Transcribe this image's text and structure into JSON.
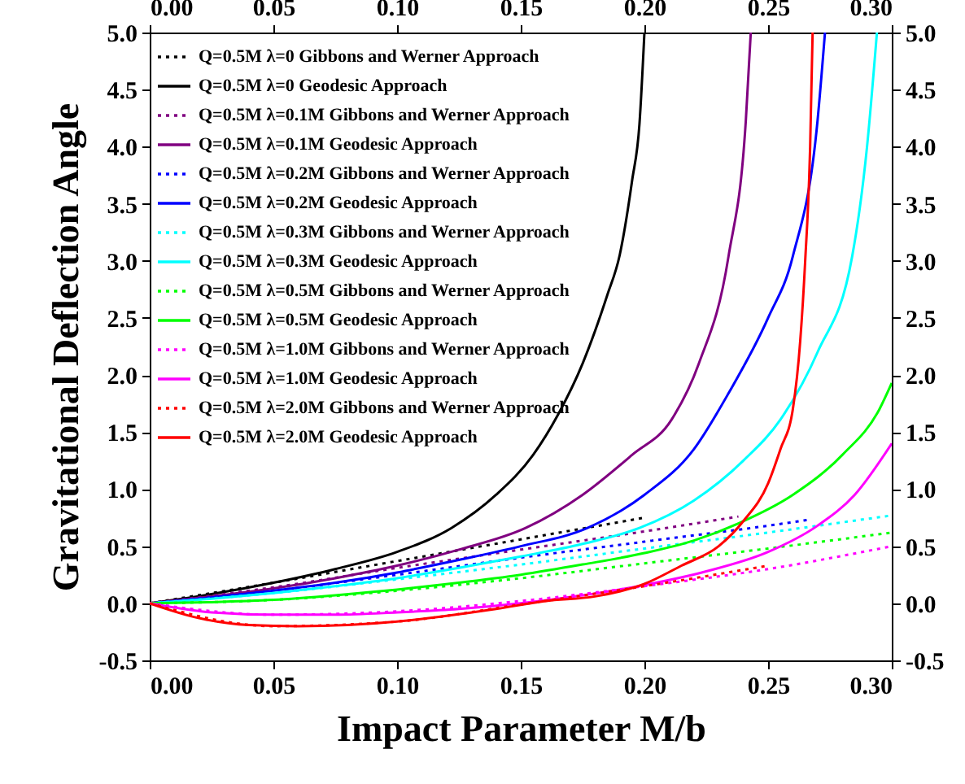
{
  "chart_data": {
    "type": "line",
    "xlabel": "Impact Parameter M/b",
    "ylabel": "Gravitational Deflection Angle",
    "xlim": [
      0,
      0.3
    ],
    "xticks": [
      {
        "value": 0,
        "label": "0.00"
      },
      {
        "value": 0.05,
        "label": "0.05"
      },
      {
        "value": 0.1,
        "label": "0.10"
      },
      {
        "value": 0.15,
        "label": "0.15"
      },
      {
        "value": 0.2,
        "label": "0.20"
      },
      {
        "value": 0.25,
        "label": "0.25"
      },
      {
        "value": 0.3,
        "label": "0.30"
      }
    ],
    "x2lim": [
      0,
      0.3
    ],
    "x2ticks": [
      {
        "value": 0,
        "label": "0.00"
      },
      {
        "value": 0.05,
        "label": "0.05"
      },
      {
        "value": 0.1,
        "label": "0.10"
      },
      {
        "value": 0.15,
        "label": "0.15"
      },
      {
        "value": 0.2,
        "label": "0.20"
      },
      {
        "value": 0.25,
        "label": "0.25"
      },
      {
        "value": 0.3,
        "label": "0.30"
      }
    ],
    "ylim": [
      -0.5,
      5
    ],
    "yticks": [
      -0.5,
      {
        "value": 0,
        "label": "0.0"
      },
      0.5,
      {
        "value": 1,
        "label": "1.0"
      },
      1.5,
      {
        "value": 2,
        "label": "2.0"
      },
      2.5,
      {
        "value": 3,
        "label": "3.0"
      },
      3.5,
      {
        "value": 4,
        "label": "4.0"
      },
      4.5,
      {
        "value": 5,
        "label": "5.0"
      }
    ],
    "y2lim": [
      -0.5,
      5
    ],
    "y2ticks": [
      -0.5,
      {
        "value": 0,
        "label": "0.0"
      },
      0.5,
      {
        "value": 1,
        "label": "1.0"
      },
      1.5,
      {
        "value": 2,
        "label": "2.0"
      },
      2.5,
      {
        "value": 3,
        "label": "3.0"
      },
      3.5,
      {
        "value": 4,
        "label": "4.0"
      },
      4.5,
      {
        "value": 5,
        "label": "5.0"
      }
    ],
    "legend": "top left",
    "grid": false,
    "marker": "none",
    "series": [
      {
        "name": "Q=0.5M λ=0 Gibbons and Werner Approach",
        "color": "#000000",
        "line_style": "dotted",
        "x": [
          0,
          0.05,
          0.1,
          0.15,
          0.2
        ],
        "values": [
          0,
          0.18,
          0.37,
          0.56,
          0.75
        ]
      },
      {
        "name": "Q=0.5M λ=0 Geodesic Approach",
        "color": "#000000",
        "line_style": "solid",
        "x": [
          0,
          0.025,
          0.05,
          0.075,
          0.1,
          0.122,
          0.14,
          0.155,
          0.165,
          0.175,
          0.185,
          0.19,
          0.195,
          0.198,
          0.2
        ],
        "values": [
          0,
          0.08,
          0.18,
          0.3,
          0.45,
          0.66,
          0.95,
          1.3,
          1.65,
          2.1,
          2.7,
          3.05,
          3.7,
          4.2,
          5.0
        ]
      },
      {
        "name": "Q=0.5M λ=0.1M Gibbons and Werner Approach",
        "color": "#800080",
        "line_style": "dotted",
        "x": [
          0,
          0.05,
          0.1,
          0.15,
          0.2,
          0.238
        ],
        "values": [
          0,
          0.14,
          0.31,
          0.47,
          0.63,
          0.76
        ]
      },
      {
        "name": "Q=0.5M λ=0.1M Geodesic Approach",
        "color": "#800080",
        "line_style": "solid",
        "x": [
          0,
          0.025,
          0.05,
          0.075,
          0.1,
          0.125,
          0.152,
          0.175,
          0.195,
          0.211,
          0.222,
          0.234,
          0.241,
          0.243
        ],
        "values": [
          0,
          0.06,
          0.13,
          0.22,
          0.33,
          0.47,
          0.66,
          0.95,
          1.3,
          1.61,
          2.1,
          3.04,
          4.23,
          5.0
        ]
      },
      {
        "name": "Q=0.5M λ=0.2M Gibbons and Werner Approach",
        "color": "#0000ff",
        "line_style": "dotted",
        "x": [
          0,
          0.05,
          0.1,
          0.15,
          0.2,
          0.25,
          0.266
        ],
        "values": [
          0,
          0.11,
          0.25,
          0.4,
          0.54,
          0.68,
          0.73
        ]
      },
      {
        "name": "Q=0.5M λ=0.2M Geodesic Approach",
        "color": "#0000ff",
        "line_style": "solid",
        "x": [
          0,
          0.025,
          0.05,
          0.075,
          0.1,
          0.125,
          0.15,
          0.177,
          0.2,
          0.22,
          0.234,
          0.25,
          0.26,
          0.27,
          0.273
        ],
        "values": [
          0,
          0.05,
          0.11,
          0.18,
          0.27,
          0.38,
          0.5,
          0.66,
          0.95,
          1.35,
          1.84,
          2.5,
          3.04,
          4.23,
          5.0
        ]
      },
      {
        "name": "Q=0.5M λ=0.3M Gibbons and Werner Approach",
        "color": "#00ffff",
        "line_style": "dotted",
        "x": [
          0,
          0.05,
          0.1,
          0.15,
          0.2,
          0.25,
          0.3
        ],
        "values": [
          0,
          0.09,
          0.21,
          0.34,
          0.48,
          0.62,
          0.77
        ]
      },
      {
        "name": "Q=0.5M λ=0.3M Geodesic Approach",
        "color": "#00ffff",
        "line_style": "solid",
        "x": [
          0,
          0.025,
          0.05,
          0.075,
          0.1,
          0.125,
          0.15,
          0.175,
          0.198,
          0.22,
          0.24,
          0.255,
          0.27,
          0.284,
          0.29,
          0.294
        ],
        "values": [
          0,
          0.04,
          0.09,
          0.15,
          0.22,
          0.31,
          0.41,
          0.52,
          0.66,
          0.9,
          1.25,
          1.61,
          2.2,
          3.04,
          4.0,
          5.0
        ]
      },
      {
        "name": "Q=0.5M λ=0.5M Gibbons and Werner Approach",
        "color": "#00ff00",
        "line_style": "dotted",
        "x": [
          0,
          0.05,
          0.1,
          0.15,
          0.2,
          0.25,
          0.3
        ],
        "values": [
          0,
          0.03,
          0.11,
          0.22,
          0.35,
          0.48,
          0.62
        ]
      },
      {
        "name": "Q=0.5M λ=0.5M Geodesic Approach",
        "color": "#00ff00",
        "line_style": "solid",
        "x": [
          0,
          0.025,
          0.05,
          0.075,
          0.1,
          0.125,
          0.15,
          0.175,
          0.2,
          0.22,
          0.238,
          0.26,
          0.28,
          0.295,
          0.3
        ],
        "values": [
          0,
          0.01,
          0.03,
          0.07,
          0.12,
          0.18,
          0.25,
          0.34,
          0.44,
          0.55,
          0.7,
          0.95,
          1.3,
          1.7,
          1.93
        ]
      },
      {
        "name": "Q=0.5M λ=1.0M Gibbons and Werner Approach",
        "color": "#ff00ff",
        "line_style": "dotted",
        "x": [
          0,
          0.05,
          0.1,
          0.15,
          0.2,
          0.25,
          0.3
        ],
        "values": [
          0,
          -0.1,
          -0.07,
          0.02,
          0.15,
          0.3,
          0.5
        ]
      },
      {
        "name": "Q=0.5M λ=1.0M Geodesic Approach",
        "color": "#ff00ff",
        "line_style": "solid",
        "x": [
          0,
          0.025,
          0.05,
          0.075,
          0.1,
          0.125,
          0.15,
          0.175,
          0.2,
          0.225,
          0.25,
          0.27,
          0.285,
          0.3
        ],
        "values": [
          0,
          -0.08,
          -0.1,
          -0.1,
          -0.08,
          -0.05,
          0,
          0.07,
          0.16,
          0.28,
          0.45,
          0.68,
          0.95,
          1.4
        ]
      },
      {
        "name": "Q=0.5M λ=2.0M Gibbons and Werner Approach",
        "color": "#ff0000",
        "line_style": "dotted",
        "x": [
          0,
          0.05,
          0.1,
          0.15,
          0.2,
          0.25
        ],
        "values": [
          0,
          -0.2,
          -0.16,
          -0.01,
          0.15,
          0.33
        ]
      },
      {
        "name": "Q=0.5M λ=2.0M Geodesic Approach",
        "color": "#ff0000",
        "line_style": "solid",
        "x": [
          0,
          0.02,
          0.04,
          0.06,
          0.08,
          0.1,
          0.12,
          0.14,
          0.16,
          0.18,
          0.2,
          0.215,
          0.23,
          0.24,
          0.25,
          0.255,
          0.26,
          0.263,
          0.265,
          0.267,
          0.268
        ],
        "values": [
          0,
          -0.13,
          -0.19,
          -0.2,
          -0.19,
          -0.16,
          -0.11,
          -0.05,
          0.02,
          0.06,
          0.17,
          0.33,
          0.5,
          0.72,
          1.05,
          1.35,
          1.7,
          2.3,
          3.0,
          4.0,
          5.0
        ]
      }
    ]
  }
}
